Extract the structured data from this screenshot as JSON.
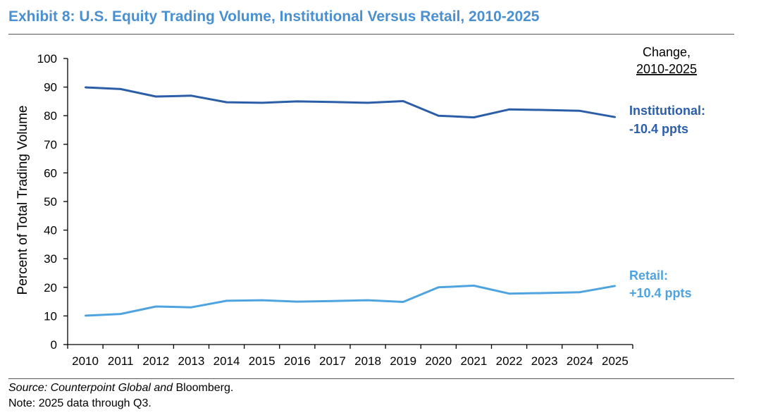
{
  "title": "Exhibit 8: U.S. Equity Trading Volume, Institutional Versus Retail, 2010-2025",
  "colors": {
    "institutional": "#2c5ea8",
    "retail": "#4fa3de",
    "title": "#4a90d0"
  },
  "chart_data": {
    "type": "line",
    "categories": [
      "2010",
      "2011",
      "2012",
      "2013",
      "2014",
      "2015",
      "2016",
      "2017",
      "2018",
      "2019",
      "2020",
      "2021",
      "2022",
      "2023",
      "2024",
      "2025"
    ],
    "series": [
      {
        "name": "Institutional",
        "values": [
          89.9,
          89.3,
          86.7,
          87.0,
          84.7,
          84.5,
          85.0,
          84.8,
          84.5,
          85.1,
          80.0,
          79.4,
          82.2,
          82.0,
          81.7,
          79.5
        ]
      },
      {
        "name": "Retail",
        "values": [
          10.1,
          10.7,
          13.3,
          13.0,
          15.3,
          15.5,
          15.0,
          15.2,
          15.5,
          14.9,
          20.0,
          20.6,
          17.8,
          18.0,
          18.3,
          20.5
        ]
      }
    ],
    "ylabel": "Percent of Total Trading Volume",
    "ylim": [
      0,
      100
    ],
    "yticks": [
      "0",
      "10",
      "20",
      "30",
      "40",
      "50",
      "60",
      "70",
      "80",
      "90",
      "100"
    ],
    "legend_header": [
      "Change,",
      "2010-2025"
    ],
    "annotations": [
      {
        "series": "Institutional",
        "lines": [
          "Institutional:",
          "-10.4 ppts"
        ]
      },
      {
        "series": "Retail",
        "lines": [
          "Retail:",
          "+10.4 ppts"
        ]
      }
    ]
  },
  "footer": {
    "source_italic": "Source: Counterpoint Global and",
    "source_plain": " Bloomberg.",
    "note": "Note: 2025 data through Q3."
  }
}
